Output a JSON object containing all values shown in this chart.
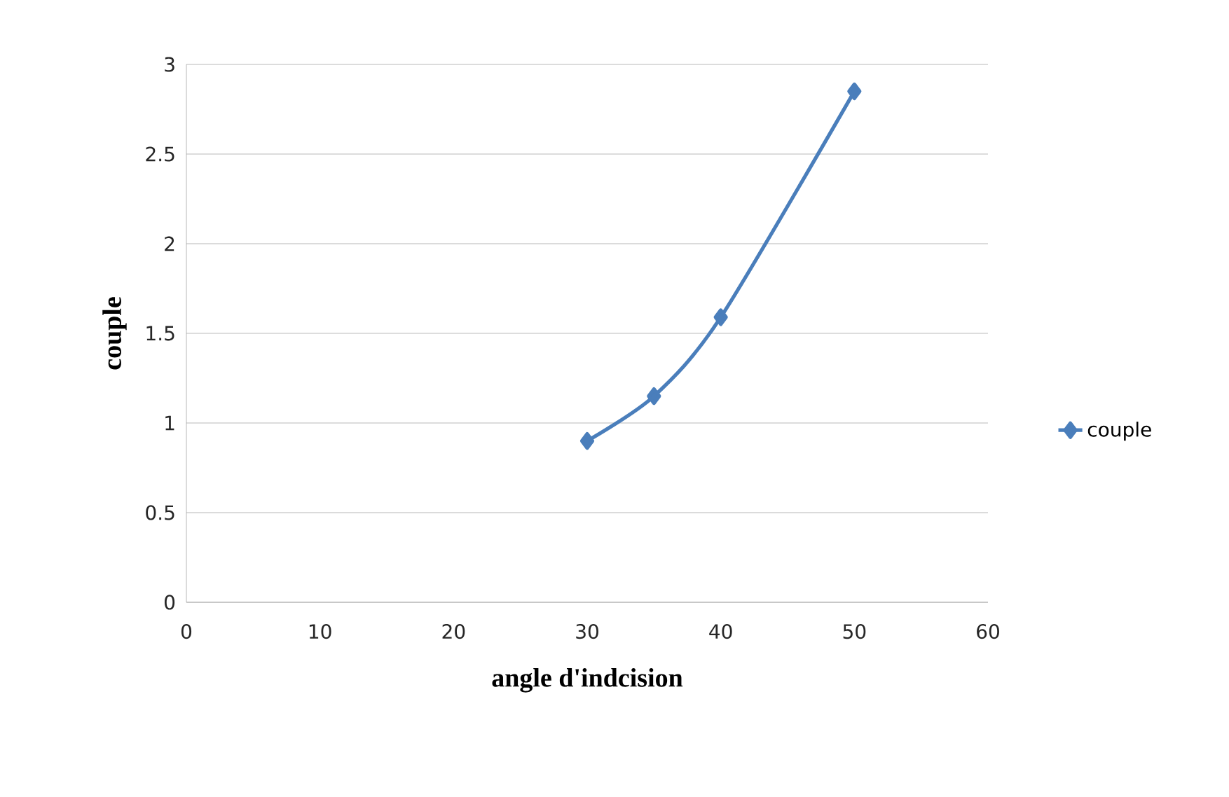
{
  "chart_data": {
    "type": "line",
    "xlabel": "angle d'indcision",
    "ylabel": "couple",
    "x": [
      30,
      35,
      40,
      50
    ],
    "series": [
      {
        "name": "couple",
        "color": "#4a7ebb",
        "values": [
          0.9,
          1.15,
          1.59,
          2.85
        ]
      }
    ],
    "xlim": [
      0,
      60
    ],
    "xticks": [
      0,
      10,
      20,
      30,
      40,
      50,
      60
    ],
    "ylim": [
      0,
      3
    ],
    "yticks": [
      0,
      0.5,
      1,
      1.5,
      2,
      2.5,
      3
    ],
    "grid": "y",
    "legend": "right",
    "marker": "diamond",
    "line_style": "solid"
  }
}
